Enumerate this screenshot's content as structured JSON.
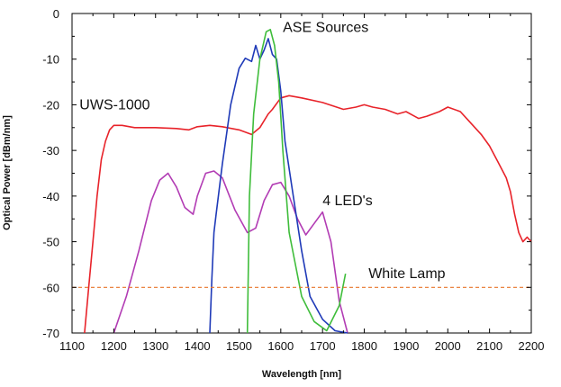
{
  "chart_data": {
    "type": "line",
    "title": "",
    "xlabel": "Wavelength [nm]",
    "ylabel": "Optical Power [dBm/nm]",
    "xlim": [
      1100,
      2200
    ],
    "ylim": [
      -70,
      0
    ],
    "x_ticks": [
      1100,
      1200,
      1300,
      1400,
      1500,
      1600,
      1700,
      1800,
      1900,
      2000,
      2100,
      2200
    ],
    "y_ticks": [
      0,
      -10,
      -20,
      -30,
      -40,
      -50,
      -60,
      -70
    ],
    "grid": false,
    "legend": "none",
    "annotations": [
      {
        "text": "ASE Sources",
        "series": "ase",
        "anchor": [
          1605,
          -4
        ]
      },
      {
        "text": "UWS-1000",
        "series": "uws",
        "anchor": [
          1118,
          -21
        ]
      },
      {
        "text": "4 LED's",
        "series": "leds",
        "anchor": [
          1700,
          -42
        ]
      },
      {
        "text": "White Lamp",
        "series": "white",
        "anchor": [
          1810,
          -58
        ]
      }
    ],
    "series": [
      {
        "id": "uws",
        "color": "#e8232a",
        "dashed": false,
        "x": [
          1130,
          1140,
          1150,
          1160,
          1170,
          1180,
          1190,
          1200,
          1220,
          1250,
          1300,
          1350,
          1380,
          1400,
          1430,
          1460,
          1500,
          1530,
          1550,
          1570,
          1580,
          1600,
          1620,
          1650,
          1700,
          1750,
          1780,
          1800,
          1820,
          1850,
          1880,
          1900,
          1930,
          1950,
          1980,
          2000,
          2030,
          2050,
          2080,
          2100,
          2120,
          2140,
          2150,
          2160,
          2170,
          2180,
          2190,
          2200
        ],
        "y": [
          -70,
          -60,
          -50,
          -40,
          -32,
          -28,
          -25.5,
          -24.5,
          -24.5,
          -25,
          -25,
          -25.2,
          -25.5,
          -24.8,
          -24.5,
          -24.8,
          -25.5,
          -26.5,
          -25,
          -22,
          -21,
          -18.5,
          -18,
          -18.5,
          -19.5,
          -21,
          -20.5,
          -20,
          -20.5,
          -21,
          -22,
          -21.5,
          -23,
          -22.5,
          -21.5,
          -20.5,
          -21.5,
          -23.5,
          -26.5,
          -29,
          -32.5,
          -36,
          -39,
          -44,
          -48,
          -50,
          -49,
          -50
        ]
      },
      {
        "id": "leds",
        "color": "#b23cb4",
        "dashed": false,
        "x": [
          1200,
          1230,
          1260,
          1290,
          1310,
          1330,
          1350,
          1370,
          1390,
          1400,
          1420,
          1440,
          1460,
          1490,
          1520,
          1540,
          1560,
          1580,
          1600,
          1620,
          1640,
          1660,
          1680,
          1700,
          1720,
          1740,
          1760
        ],
        "y": [
          -70,
          -62,
          -52,
          -41,
          -36.5,
          -35,
          -38,
          -42.5,
          -44,
          -40,
          -35,
          -34.5,
          -36,
          -43,
          -48,
          -47,
          -41,
          -37.5,
          -37,
          -40,
          -45,
          -48.5,
          -46,
          -43.5,
          -50,
          -63,
          -70
        ]
      },
      {
        "id": "ase",
        "color": "#1f3ab8",
        "dashed": false,
        "x": [
          1430,
          1435,
          1440,
          1445,
          1460,
          1480,
          1500,
          1515,
          1530,
          1540,
          1550,
          1560,
          1570,
          1580,
          1590,
          1600,
          1610,
          1630,
          1650,
          1670,
          1700,
          1730,
          1760
        ],
        "y": [
          -70,
          -58,
          -48,
          -44,
          -33,
          -20,
          -12,
          -9.8,
          -10.5,
          -7,
          -10,
          -8,
          -5.5,
          -9,
          -10,
          -17,
          -28,
          -40,
          -52,
          -62,
          -67,
          -69.5,
          -70
        ]
      },
      {
        "id": "ase-green",
        "color": "#3fbd3b",
        "dashed": false,
        "x": [
          1520,
          1525,
          1535,
          1550,
          1565,
          1575,
          1585,
          1595,
          1605,
          1620,
          1650,
          1680,
          1710,
          1740,
          1755
        ],
        "y": [
          -70,
          -40,
          -22,
          -10,
          -4,
          -3.5,
          -7,
          -15,
          -30,
          -48,
          -62,
          -67.5,
          -69.5,
          -64,
          -57
        ]
      },
      {
        "id": "white",
        "color": "#e8752a",
        "dashed": true,
        "x": [
          1100,
          2200
        ],
        "y": [
          -60,
          -60
        ]
      }
    ]
  }
}
